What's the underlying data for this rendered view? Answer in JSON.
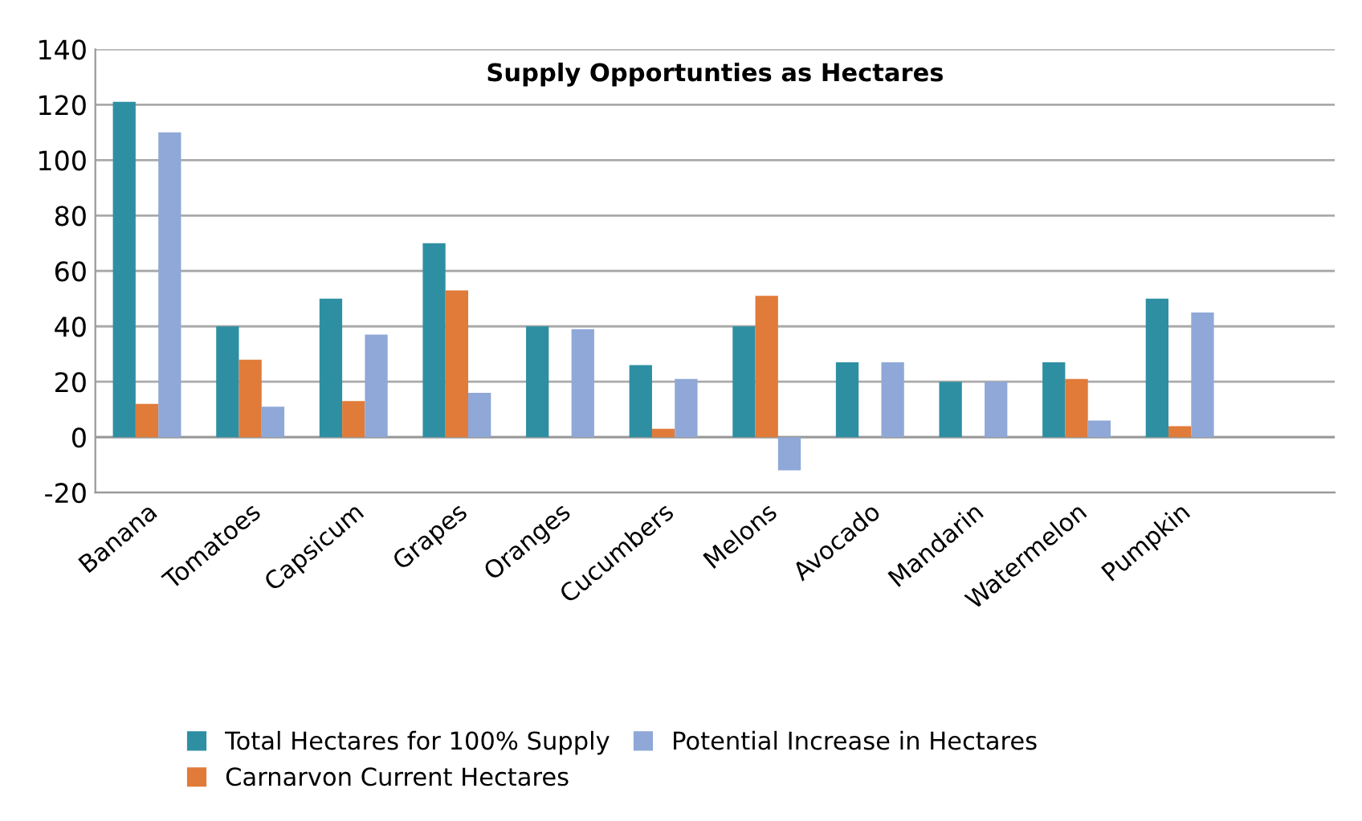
{
  "chart_data": {
    "type": "bar",
    "title": "Supply Opportunties as Hectares",
    "categories": [
      "Banana",
      "Tomatoes",
      "Capsicum",
      "Grapes",
      "Oranges",
      "Cucumbers",
      "Melons",
      "Avocado",
      "Mandarin",
      "Watermelon",
      "Pumpkin",
      null
    ],
    "series": [
      {
        "name": "Total Hectares for 100% Supply",
        "color": "#2e8fa3",
        "values": [
          121,
          40,
          50,
          70,
          40,
          26,
          40,
          27,
          20,
          27,
          50,
          null
        ]
      },
      {
        "name": "Carnarvon Current Hectares",
        "color": "#e07b39",
        "values": [
          12,
          28,
          13,
          53,
          null,
          3,
          51,
          null,
          null,
          21,
          4,
          null
        ]
      },
      {
        "name": "Potential Increase in Hectares",
        "color": "#8fa8d8",
        "values": [
          110,
          11,
          37,
          16,
          39,
          21,
          -12,
          27,
          20,
          6,
          45,
          null
        ]
      }
    ],
    "ylim": [
      -20,
      140
    ],
    "yticks": [
      -20,
      0,
      20,
      40,
      60,
      80,
      100,
      120,
      140
    ],
    "grid": "y",
    "legend": "bottom"
  }
}
